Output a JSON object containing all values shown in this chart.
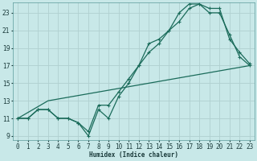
{
  "xlabel": "Humidex (Indice chaleur)",
  "bg_color": "#c8e8e8",
  "grid_color": "#b0d0d0",
  "line_color": "#1a6b5a",
  "xlim": [
    -0.5,
    23.5
  ],
  "ylim": [
    8.5,
    24.2
  ],
  "xticks": [
    0,
    1,
    2,
    3,
    4,
    5,
    6,
    7,
    8,
    9,
    10,
    11,
    12,
    13,
    14,
    15,
    16,
    17,
    18,
    19,
    20,
    21,
    22,
    23
  ],
  "yticks": [
    9,
    11,
    13,
    15,
    17,
    19,
    21,
    23
  ],
  "line1_x": [
    0,
    1,
    2,
    3,
    4,
    5,
    6,
    7,
    8,
    9,
    10,
    11,
    12,
    13,
    14,
    15,
    16,
    17,
    18,
    19,
    20,
    21,
    22,
    23
  ],
  "line1_y": [
    11,
    11,
    12,
    12,
    11,
    11,
    10.5,
    9,
    12,
    11,
    13.5,
    15,
    17,
    19.5,
    20,
    21,
    22,
    23.5,
    24,
    23,
    23,
    20.5,
    18,
    17
  ],
  "line2_x": [
    0,
    3,
    23
  ],
  "line2_y": [
    11,
    13,
    17
  ],
  "line3_x": [
    0,
    1,
    2,
    3,
    4,
    5,
    6,
    7,
    8,
    9,
    10,
    11,
    12,
    13,
    14,
    15,
    16,
    17,
    18,
    19,
    20,
    21,
    22,
    23
  ],
  "line3_y": [
    11,
    11,
    12,
    12,
    11,
    11,
    10.5,
    9.5,
    12.5,
    12.5,
    14,
    15.5,
    17,
    18.5,
    19.5,
    21,
    23,
    24,
    24,
    23.5,
    23.5,
    20,
    18.5,
    17.2
  ]
}
